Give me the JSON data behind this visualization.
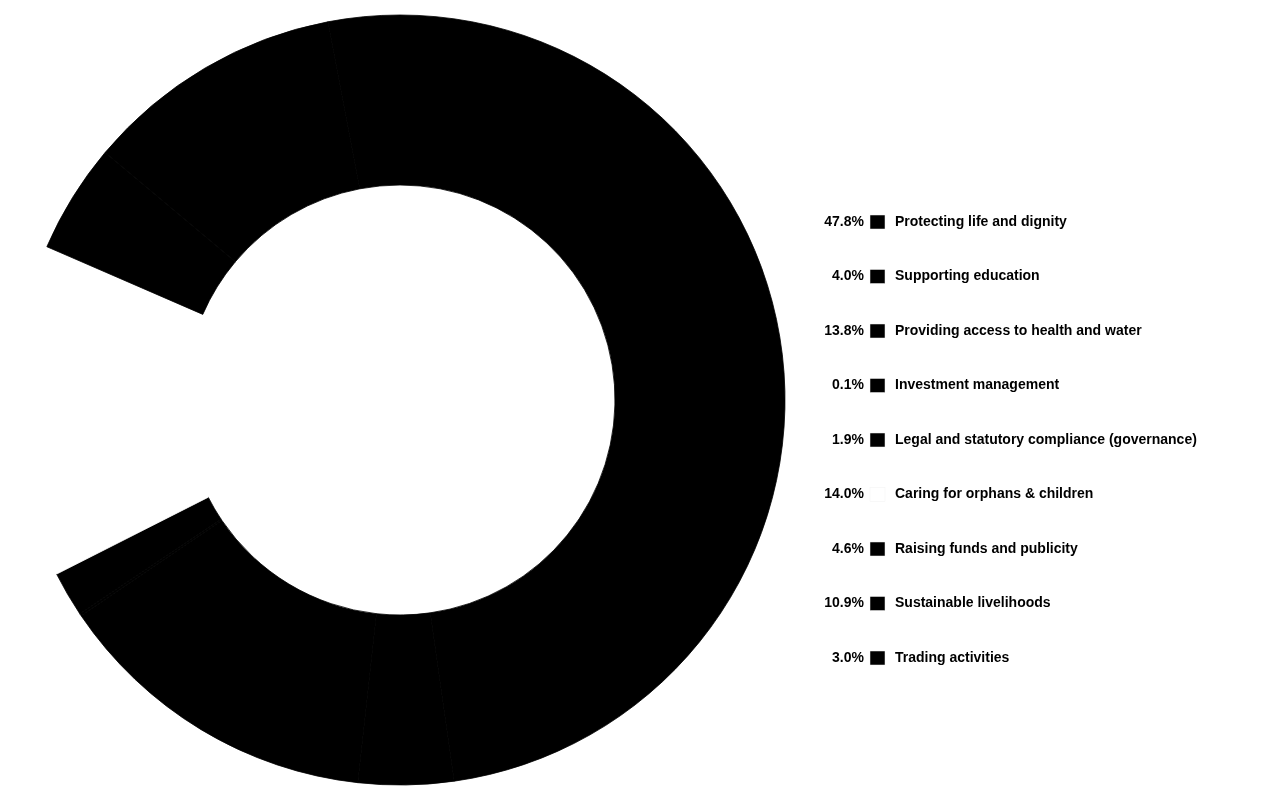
{
  "chart_data": {
    "type": "donut",
    "categories": [
      "Protecting life and dignity",
      "Supporting education",
      "Providing access to health and water",
      "Investment management",
      "Legal and statutory compliance (governance)",
      "Caring for orphans & children",
      "Raising funds and publicity",
      "Sustainable livelihoods",
      "Trading activities"
    ],
    "values": [
      47.8,
      4.0,
      13.8,
      0.1,
      1.9,
      14.0,
      4.6,
      10.9,
      3.0
    ],
    "value_labels": [
      "47.8%",
      "4.0%",
      "13.8%",
      "0.1%",
      "1.9%",
      "14.0%",
      "4.6%",
      "10.9%",
      "3.0%"
    ],
    "colors": [
      "#000000",
      "#000000",
      "#000000",
      "#000000",
      "#000000",
      "#ffffff",
      "#000000",
      "#000000",
      "#000000"
    ],
    "legend": "right"
  }
}
